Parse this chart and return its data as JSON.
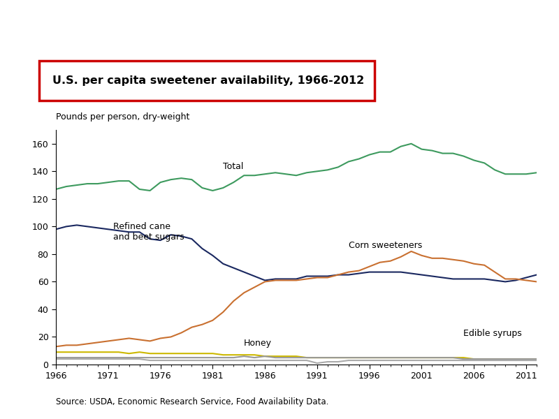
{
  "title": "U.S. per capita sweetener availability, 1966-2012",
  "ylabel": "Pounds per person, dry-weight",
  "source": "Source: USDA, Economic Research Service, Food Availability Data.",
  "years": [
    1966,
    1967,
    1968,
    1969,
    1970,
    1971,
    1972,
    1973,
    1974,
    1975,
    1976,
    1977,
    1978,
    1979,
    1980,
    1981,
    1982,
    1983,
    1984,
    1985,
    1986,
    1987,
    1988,
    1989,
    1990,
    1991,
    1992,
    1993,
    1994,
    1995,
    1996,
    1997,
    1998,
    1999,
    2000,
    2001,
    2002,
    2003,
    2004,
    2005,
    2006,
    2007,
    2008,
    2009,
    2010,
    2011,
    2012
  ],
  "total": [
    127,
    129,
    130,
    131,
    131,
    132,
    133,
    133,
    127,
    126,
    132,
    134,
    135,
    134,
    128,
    126,
    128,
    132,
    137,
    137,
    138,
    139,
    138,
    137,
    139,
    140,
    141,
    143,
    147,
    149,
    152,
    154,
    154,
    158,
    160,
    156,
    155,
    153,
    153,
    151,
    148,
    146,
    141,
    138,
    138,
    138,
    139
  ],
  "refined_cane_beet": [
    98,
    100,
    101,
    100,
    99,
    98,
    97,
    96,
    96,
    91,
    90,
    94,
    93,
    91,
    84,
    79,
    73,
    70,
    67,
    64,
    61,
    62,
    62,
    62,
    64,
    64,
    64,
    65,
    65,
    66,
    67,
    67,
    67,
    67,
    66,
    65,
    64,
    63,
    62,
    62,
    62,
    62,
    61,
    60,
    61,
    63,
    65
  ],
  "corn_sweeteners": [
    13,
    14,
    14,
    15,
    16,
    17,
    18,
    19,
    18,
    17,
    19,
    20,
    23,
    27,
    29,
    32,
    38,
    46,
    52,
    56,
    60,
    61,
    61,
    61,
    62,
    63,
    63,
    65,
    67,
    68,
    71,
    74,
    75,
    78,
    82,
    79,
    77,
    77,
    76,
    75,
    73,
    72,
    67,
    62,
    62,
    61,
    60
  ],
  "honey": [
    9,
    9,
    9,
    9,
    9,
    9,
    9,
    8,
    9,
    8,
    8,
    8,
    8,
    8,
    8,
    8,
    7,
    7,
    7,
    7,
    6,
    6,
    6,
    6,
    5,
    5,
    5,
    5,
    5,
    5,
    5,
    5,
    5,
    5,
    5,
    5,
    5,
    5,
    5,
    5,
    4,
    4,
    4,
    4,
    4,
    4,
    4
  ],
  "edible_syrups": [
    5,
    5,
    5,
    5,
    5,
    5,
    5,
    5,
    5,
    5,
    5,
    5,
    5,
    5,
    5,
    5,
    5,
    5,
    6,
    5,
    6,
    5,
    5,
    5,
    5,
    5,
    5,
    5,
    5,
    5,
    5,
    5,
    5,
    5,
    5,
    5,
    5,
    5,
    5,
    4,
    4,
    4,
    4,
    4,
    4,
    4,
    4
  ],
  "other": [
    4,
    4,
    4,
    4,
    4,
    4,
    4,
    4,
    4,
    3,
    3,
    3,
    3,
    3,
    3,
    3,
    3,
    3,
    3,
    3,
    3,
    3,
    3,
    3,
    3,
    1,
    2,
    2,
    3,
    3,
    3,
    3,
    3,
    3,
    3,
    3,
    3,
    3,
    3,
    3,
    3,
    3,
    3,
    3,
    3,
    3,
    3
  ],
  "colors": {
    "total": "#3d9a5e",
    "refined_cane_beet": "#1a2860",
    "corn_sweeteners": "#c97030",
    "edible_syrups": "#999999",
    "honey": "#ccb800",
    "other": "#aaaaaa"
  },
  "xlim": [
    1966,
    2012
  ],
  "ylim": [
    0,
    170
  ],
  "yticks": [
    0,
    20,
    40,
    60,
    80,
    100,
    120,
    140,
    160
  ],
  "xticks": [
    1966,
    1971,
    1976,
    1981,
    1986,
    1991,
    1996,
    2001,
    2006,
    2011
  ],
  "title_color": "#cc0000",
  "bg_color": "#ffffff",
  "line_width": 1.5
}
